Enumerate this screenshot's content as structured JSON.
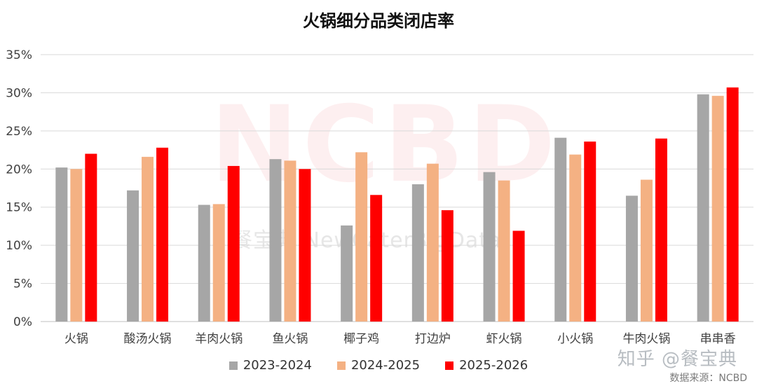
{
  "chart_data": {
    "type": "bar",
    "title": "火锅细分品类闭店率",
    "xlabel": "",
    "ylabel": "",
    "ylim": [
      0,
      35
    ],
    "ytick_labels": [
      "0%",
      "5%",
      "10%",
      "15%",
      "20%",
      "25%",
      "30%",
      "35%"
    ],
    "grid": true,
    "legend_position": "bottom",
    "categories": [
      "火锅",
      "酸汤火锅",
      "羊肉火锅",
      "鱼火锅",
      "椰子鸡",
      "打边炉",
      "虾火锅",
      "小火锅",
      "牛肉火锅",
      "串串香"
    ],
    "series": [
      {
        "name": "2023-2024",
        "color": "#a6a6a6",
        "values": [
          20.2,
          17.2,
          15.3,
          21.3,
          12.6,
          18.0,
          19.6,
          24.1,
          16.5,
          29.8
        ]
      },
      {
        "name": "2024-2025",
        "color": "#f4b183",
        "values": [
          20.0,
          21.6,
          15.4,
          21.1,
          22.2,
          20.7,
          18.5,
          21.9,
          18.6,
          29.6
        ]
      },
      {
        "name": "2025-2026",
        "color": "#ff0000",
        "values": [
          22.0,
          22.8,
          20.4,
          20.0,
          16.6,
          14.6,
          11.9,
          23.6,
          24.0,
          30.7
        ]
      }
    ]
  },
  "watermark": {
    "main": "NCBD",
    "sub": "餐宝典 NewCaterBigData"
  },
  "zhihu_mark": "知乎 @餐宝典",
  "source_note": "数据来源：NCBD"
}
